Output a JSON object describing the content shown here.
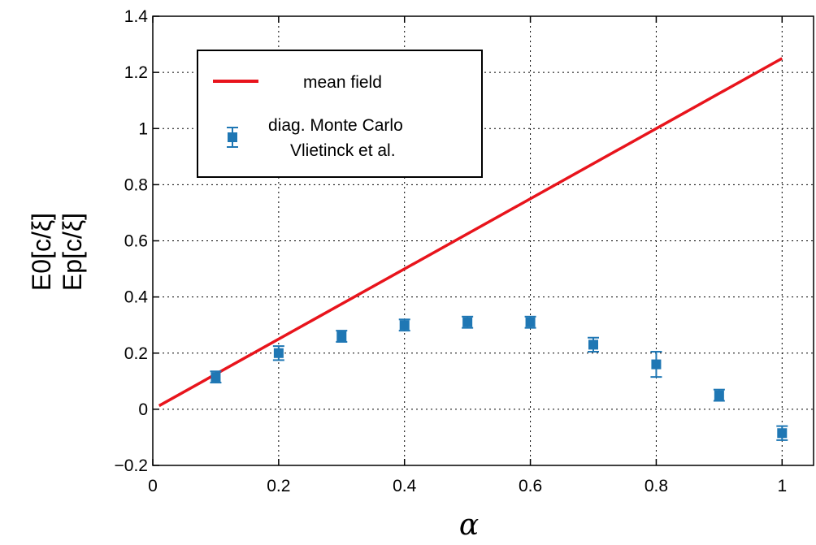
{
  "chart_data": {
    "type": "scatter",
    "xlabel": "α",
    "ylabel_lines": [
      "E0[c/ξ]",
      "Ep[c/ξ]"
    ],
    "xlim": [
      0,
      1.05
    ],
    "ylim": [
      -0.2,
      1.4
    ],
    "xticks": [
      0,
      0.2,
      0.4,
      0.6,
      0.8,
      1
    ],
    "xtick_labels": [
      "0",
      "0.2",
      "0.4",
      "0.6",
      "0.8",
      "1"
    ],
    "yticks": [
      -0.2,
      0,
      0.2,
      0.4,
      0.6,
      0.8,
      1,
      1.2,
      1.4
    ],
    "ytick_labels": [
      "−0.2",
      "0",
      "0.2",
      "0.4",
      "0.6",
      "0.8",
      "1",
      "1.2",
      "1.4"
    ],
    "grid": true,
    "legend_position": "top-left",
    "series": [
      {
        "name": "mean field",
        "type": "line",
        "color": "#e8141c",
        "x": [
          0.01,
          1.0
        ],
        "y": [
          0.0125,
          1.25
        ]
      },
      {
        "name_lines": [
          "diag. Monte Carlo",
          "Vlietinck et al."
        ],
        "type": "errorbar",
        "color": "#1f77b4",
        "x": [
          0.1,
          0.2,
          0.3,
          0.4,
          0.5,
          0.6,
          0.7,
          0.8,
          0.9,
          1.0
        ],
        "y": [
          0.115,
          0.2,
          0.26,
          0.3,
          0.31,
          0.31,
          0.23,
          0.16,
          0.05,
          -0.085
        ],
        "err": [
          0.02,
          0.025,
          0.02,
          0.02,
          0.02,
          0.02,
          0.025,
          0.045,
          0.02,
          0.025
        ]
      }
    ]
  }
}
